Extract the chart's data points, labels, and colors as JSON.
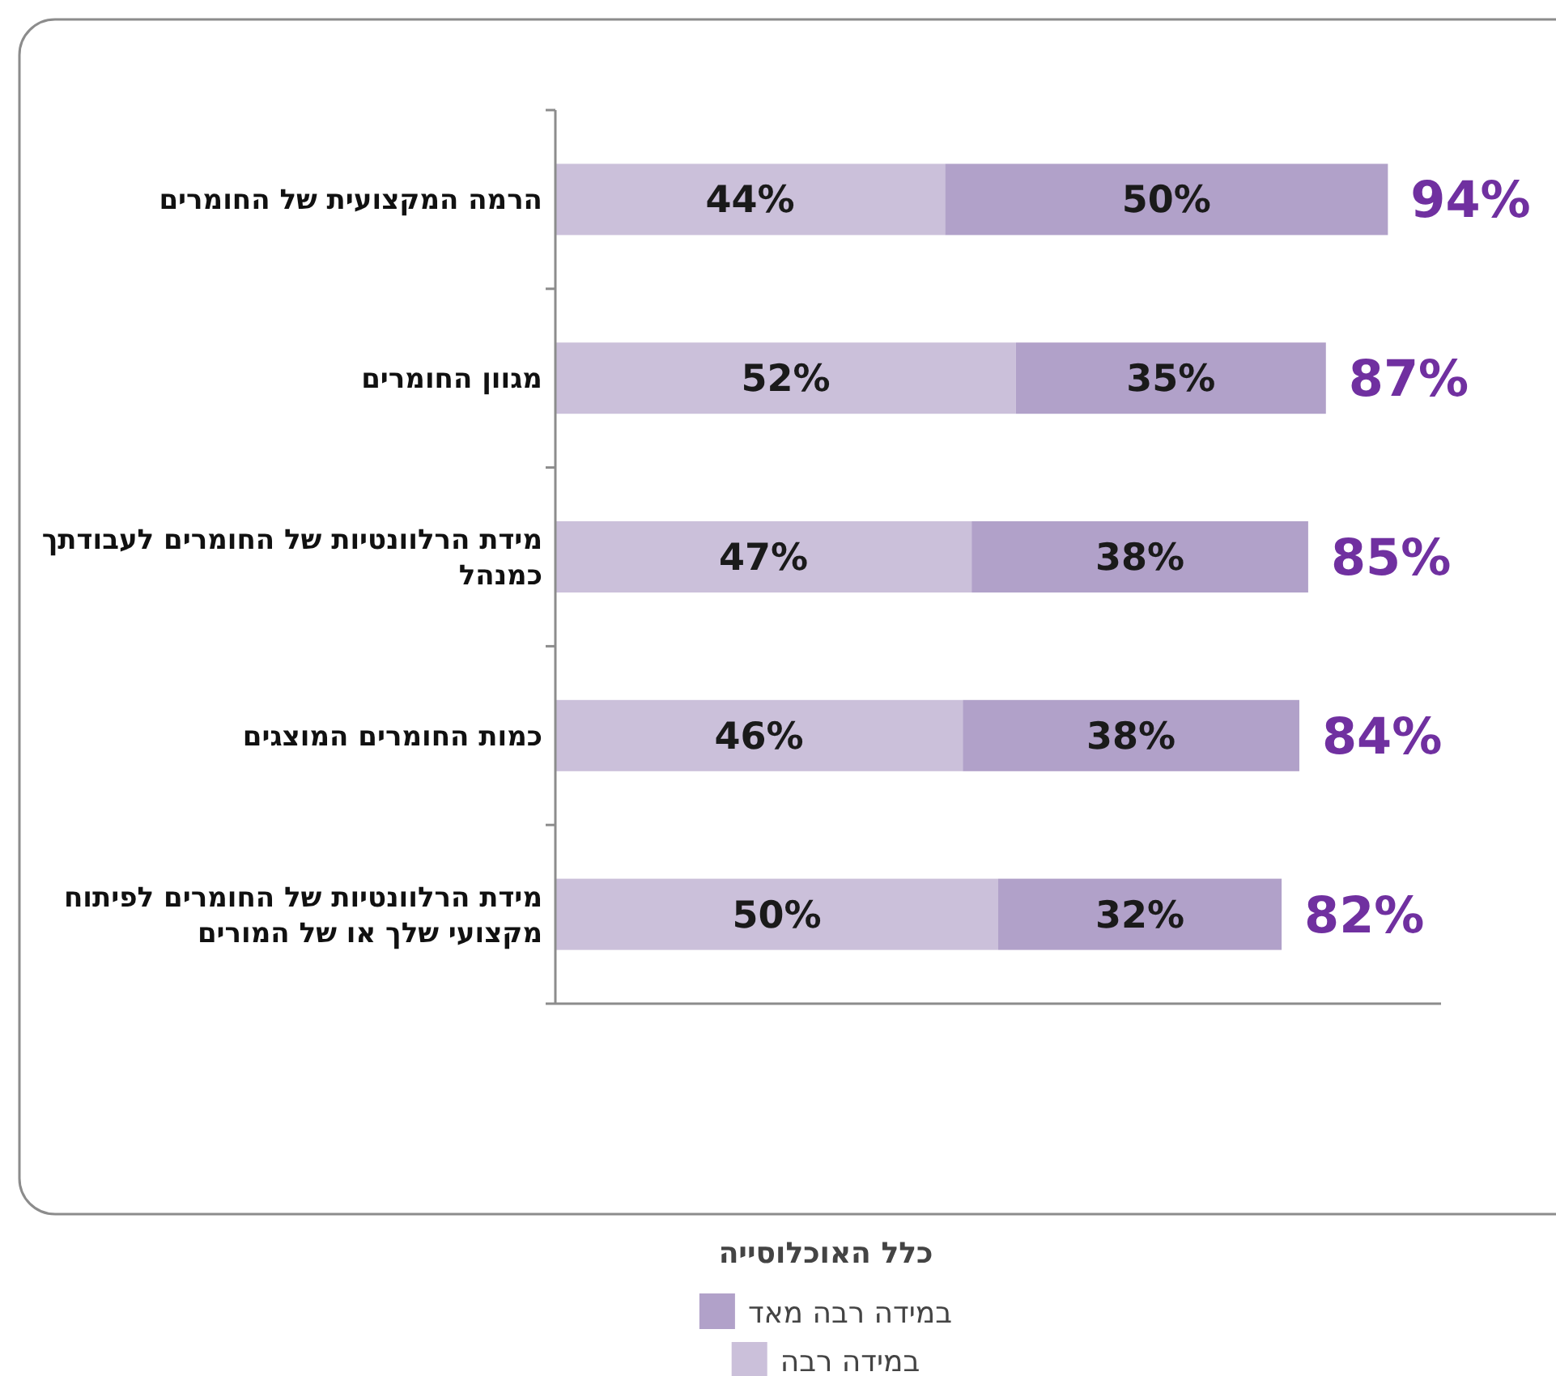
{
  "chart_data": {
    "type": "bar",
    "orientation": "horizontal",
    "stacked": true,
    "categories": [
      "הרמה המקצועית של החומרים",
      "מגוון החומרים",
      "מידת הרלוונטיות של החומרים לעבודתך כמנהל",
      "כמות החומרים המוצגים",
      "מידת הרלוונטיות של החומרים לפיתוח מקצועי שלך או של המורים"
    ],
    "series": [
      {
        "name": "במידה רבה",
        "color": "#cbc0da",
        "values": [
          44,
          52,
          47,
          46,
          50
        ],
        "value_labels": [
          "44%",
          "52%",
          "47%",
          "46%",
          "50%"
        ]
      },
      {
        "name": "במידה רבה מאד",
        "color": "#b1a1c9",
        "values": [
          50,
          35,
          38,
          38,
          32
        ],
        "value_labels": [
          "50%",
          "35%",
          "38%",
          "38%",
          "32%"
        ]
      }
    ],
    "totals": [
      "94%",
      "87%",
      "85%",
      "84%",
      "82%"
    ],
    "xlim": [
      0,
      100
    ],
    "tick_labels": "y",
    "grid": false,
    "legend": "bottom",
    "legend_title": "כלל האוכלוסייה"
  }
}
